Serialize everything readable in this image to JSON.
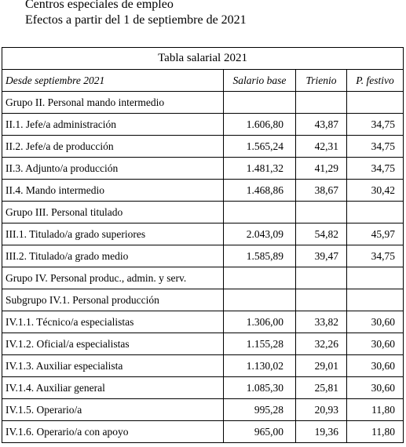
{
  "header": {
    "line1": "Centros especiales de empleo",
    "line2": "Efectos a partir del 1 de septiembre de 2021"
  },
  "table": {
    "title": "Tabla salarial 2021",
    "columns": [
      "Desde septiembre 2021",
      "Salario base",
      "Trienio",
      "P. festivo"
    ],
    "rows": [
      {
        "label": "Grupo II. Personal mando intermedio",
        "salario": "",
        "trienio": "",
        "festivo": ""
      },
      {
        "label": "II.1. Jefe/a administración",
        "salario": "1.606,80",
        "trienio": "43,87",
        "festivo": "34,75"
      },
      {
        "label": "II.2. Jefe/a de producción",
        "salario": "1.565,24",
        "trienio": "42,31",
        "festivo": "34,75"
      },
      {
        "label": "II.3. Adjunto/a producción",
        "salario": "1.481,32",
        "trienio": "41,29",
        "festivo": "34,75"
      },
      {
        "label": "II.4. Mando intermedio",
        "salario": "1.468,86",
        "trienio": "38,67",
        "festivo": "30,42"
      },
      {
        "label": "Grupo III. Personal titulado",
        "salario": "",
        "trienio": "",
        "festivo": ""
      },
      {
        "label": "III.1. Titulado/a grado superiores",
        "salario": "2.043,09",
        "trienio": "54,82",
        "festivo": "45,97"
      },
      {
        "label": "III.2. Titulado/a grado medio",
        "salario": "1.585,89",
        "trienio": "39,47",
        "festivo": "34,75"
      },
      {
        "label": "Grupo IV. Personal produc., admin. y serv.",
        "salario": "",
        "trienio": "",
        "festivo": ""
      },
      {
        "label": "Subgrupo IV.1. Personal producción",
        "salario": "",
        "trienio": "",
        "festivo": ""
      },
      {
        "label": "IV.1.1. Técnico/a especialistas",
        "salario": "1.306,00",
        "trienio": "33,82",
        "festivo": "30,60"
      },
      {
        "label": "IV.1.2. Oficial/a especialistas",
        "salario": "1.155,28",
        "trienio": "32,26",
        "festivo": "30,60"
      },
      {
        "label": "IV.1.3. Auxiliar especialista",
        "salario": "1.130,02",
        "trienio": "29,01",
        "festivo": "30,60"
      },
      {
        "label": "IV.1.4. Auxiliar general",
        "salario": "1.085,30",
        "trienio": "25,81",
        "festivo": "30,60"
      },
      {
        "label": "IV.1.5. Operario/a",
        "salario": "995,28",
        "trienio": "20,93",
        "festivo": "11,80"
      },
      {
        "label": "IV.1.6. Operario/a con apoyo",
        "salario": "965,00",
        "trienio": "19,36",
        "festivo": "11,80"
      }
    ]
  }
}
